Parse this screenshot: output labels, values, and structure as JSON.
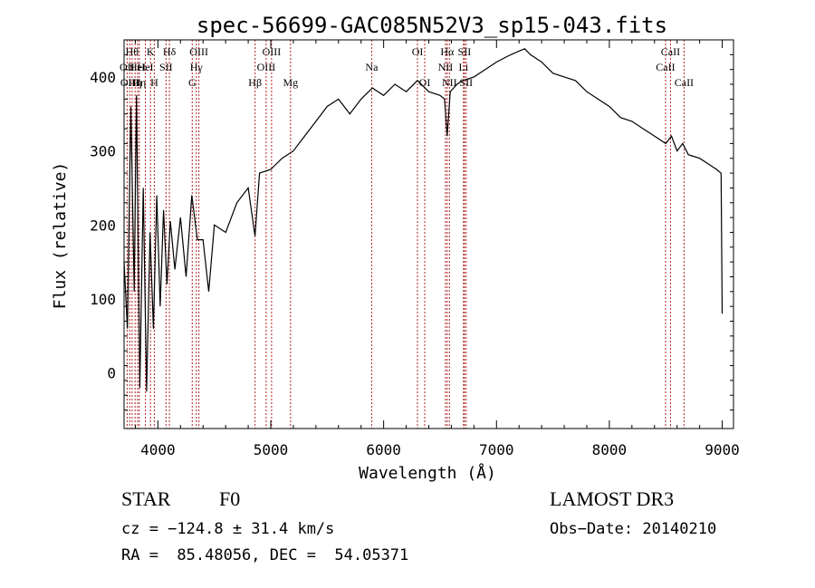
{
  "chart_data": {
    "type": "line",
    "title": "spec-56699-GAC085N52V3_sp15-043.fits",
    "xlabel": "Wavelength (Å)",
    "ylabel": "Flux (relative)",
    "xlim": [
      3700,
      9100
    ],
    "ylim": [
      -75,
      450
    ],
    "xticks": [
      4000,
      5000,
      6000,
      7000,
      8000,
      9000
    ],
    "yticks": [
      0,
      100,
      200,
      300,
      400
    ],
    "series": [
      {
        "name": "spectrum",
        "x": [
          3700,
          3730,
          3760,
          3790,
          3810,
          3840,
          3870,
          3900,
          3930,
          3960,
          3990,
          4020,
          4050,
          4080,
          4110,
          4150,
          4200,
          4250,
          4300,
          4350,
          4400,
          4450,
          4500,
          4600,
          4700,
          4800,
          4860,
          4900,
          5000,
          5100,
          5200,
          5300,
          5400,
          5500,
          5600,
          5700,
          5800,
          5900,
          6000,
          6100,
          6200,
          6300,
          6400,
          6500,
          6540,
          6563,
          6590,
          6650,
          6700,
          6800,
          6900,
          7000,
          7100,
          7200,
          7250,
          7300,
          7350,
          7400,
          7500,
          7600,
          7700,
          7800,
          7900,
          8000,
          8100,
          8200,
          8300,
          8400,
          8500,
          8550,
          8600,
          8650,
          8700,
          8800,
          8900,
          8950,
          8990,
          9000
        ],
        "y": [
          150,
          60,
          360,
          110,
          375,
          -20,
          250,
          -25,
          190,
          60,
          240,
          90,
          220,
          120,
          205,
          140,
          210,
          130,
          240,
          180,
          180,
          110,
          200,
          190,
          230,
          250,
          185,
          270,
          275,
          290,
          300,
          320,
          340,
          360,
          370,
          350,
          370,
          385,
          375,
          390,
          380,
          395,
          380,
          375,
          370,
          320,
          380,
          390,
          395,
          400,
          410,
          420,
          428,
          435,
          438,
          430,
          425,
          420,
          405,
          400,
          395,
          380,
          370,
          360,
          345,
          340,
          330,
          320,
          310,
          320,
          300,
          310,
          295,
          290,
          280,
          275,
          270,
          80
        ]
      }
    ],
    "lines": [
      {
        "x": 3727,
        "label": "OII",
        "row": 1
      },
      {
        "x": 3750,
        "label": "OIII",
        "row": 2
      },
      {
        "x": 3771,
        "label": "Hθ",
        "row": 0
      },
      {
        "x": 3798,
        "label": "Hη",
        "row": 2
      },
      {
        "x": 3820,
        "label": "HeI",
        "row": 1
      },
      {
        "x": 3835,
        "label": "Hη",
        "row": 2
      },
      {
        "x": 3889,
        "label": "HeI",
        "row": 1
      },
      {
        "x": 3934,
        "label": "K",
        "row": 0
      },
      {
        "x": 3968,
        "label": "H",
        "row": 2
      },
      {
        "x": 4072,
        "label": "SII",
        "row": 1
      },
      {
        "x": 4102,
        "label": "Hδ",
        "row": 0
      },
      {
        "x": 4304,
        "label": "G",
        "row": 2
      },
      {
        "x": 4340,
        "label": "Hγ",
        "row": 1
      },
      {
        "x": 4363,
        "label": "OIII",
        "row": 0
      },
      {
        "x": 4861,
        "label": "Hβ",
        "row": 2
      },
      {
        "x": 4959,
        "label": "OIII",
        "row": 1
      },
      {
        "x": 5007,
        "label": "OIII",
        "row": 0
      },
      {
        "x": 5175,
        "label": "Mg",
        "row": 2
      },
      {
        "x": 5894,
        "label": "Na",
        "row": 1
      },
      {
        "x": 6300,
        "label": "OI",
        "row": 0
      },
      {
        "x": 6364,
        "label": "OI",
        "row": 2
      },
      {
        "x": 6548,
        "label": "NII",
        "row": 1
      },
      {
        "x": 6563,
        "label": "Hα",
        "row": 0
      },
      {
        "x": 6583,
        "label": "NII",
        "row": 2
      },
      {
        "x": 6708,
        "label": "Li",
        "row": 1
      },
      {
        "x": 6716,
        "label": "SII",
        "row": 0
      },
      {
        "x": 6731,
        "label": "SII",
        "row": 2
      },
      {
        "x": 8498,
        "label": "CaII",
        "row": 1
      },
      {
        "x": 8542,
        "label": "CaII",
        "row": 0
      },
      {
        "x": 8662,
        "label": "CaII",
        "row": 2
      }
    ],
    "grid": false,
    "line_color": "#000000",
    "marker_color": "#b22222"
  },
  "info": {
    "object_class": "STAR",
    "subclass": "F0",
    "survey": "LAMOST DR3",
    "redshift_text": "cz = −124.8 ± 31.4 km/s",
    "obs_date_text": "Obs−Date: 20140210",
    "coords_text": "RA =  85.48056, DEC =  54.05371"
  }
}
